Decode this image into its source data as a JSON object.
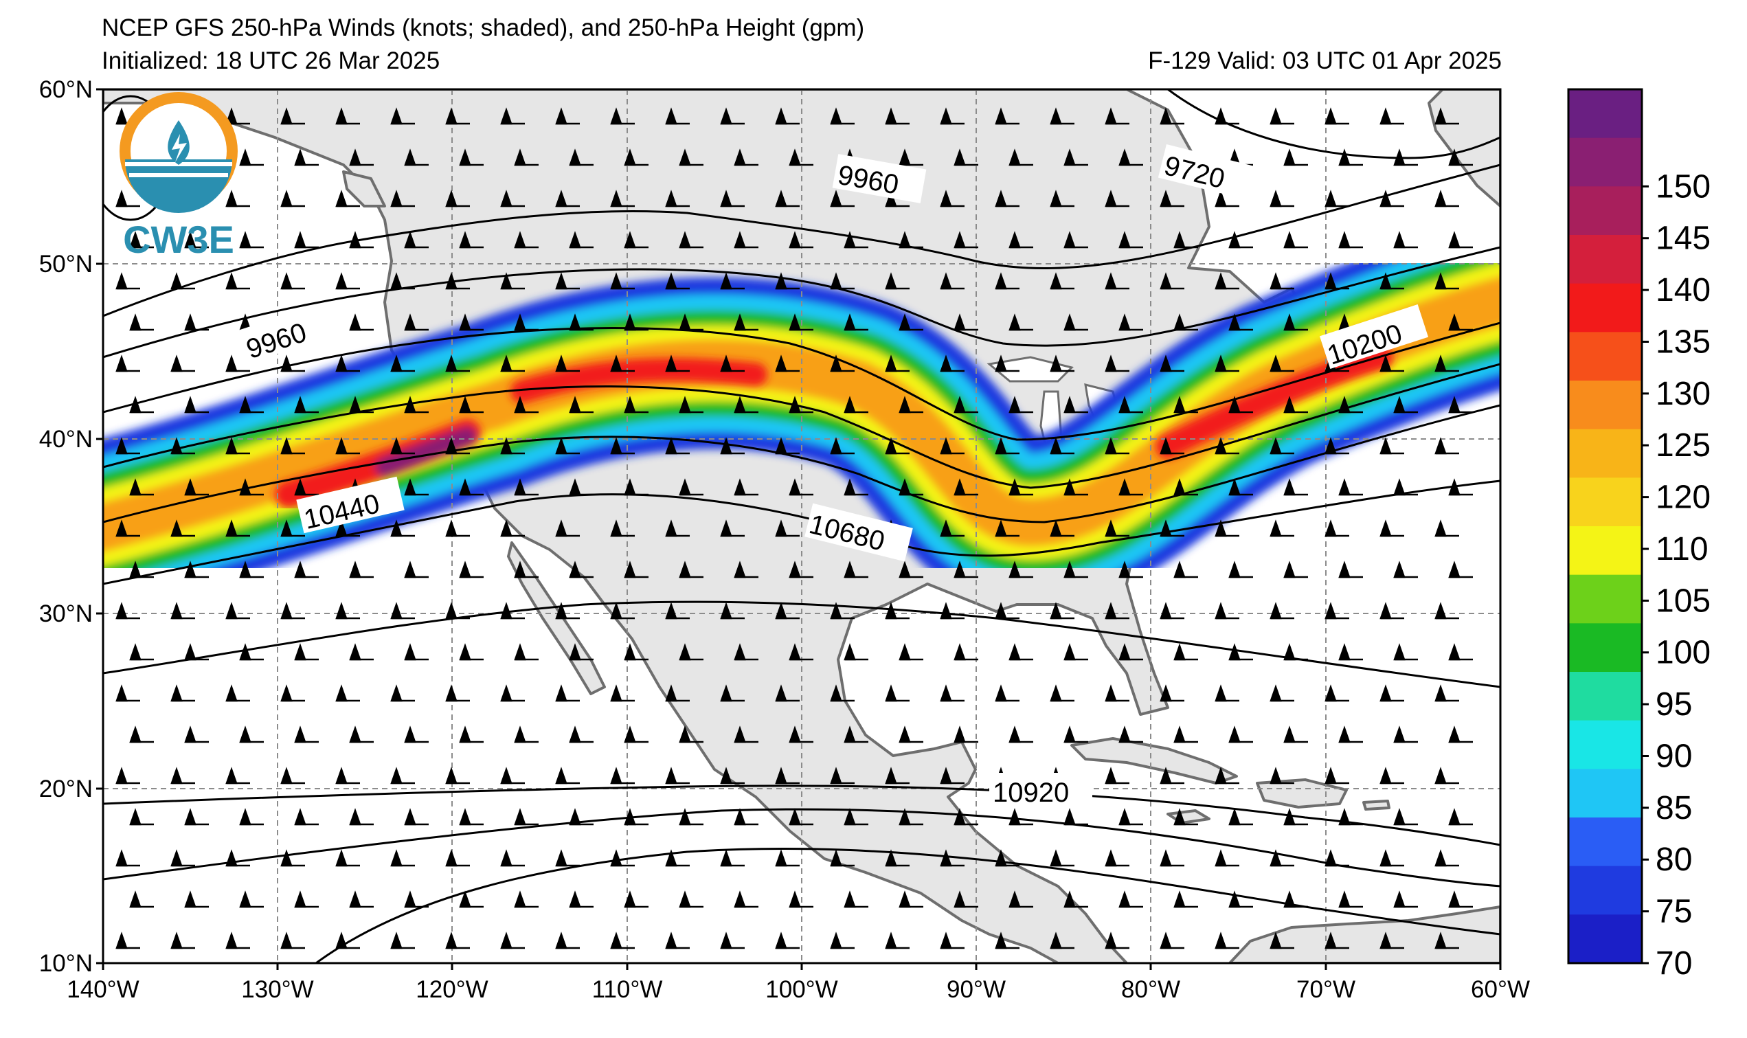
{
  "header": {
    "title": "NCEP GFS 250-hPa Winds (knots; shaded), and 250-hPa Height (gpm)",
    "initialized": "Initialized: 18 UTC 26 Mar 2025",
    "valid": "F-129  Valid: 03 UTC 01 Apr 2025"
  },
  "logo": {
    "text": "CW3E"
  },
  "axes": {
    "lat_labels": [
      "60°N",
      "50°N",
      "40°N",
      "30°N",
      "20°N",
      "10°N"
    ],
    "lon_labels": [
      "140°W",
      "130°W",
      "120°W",
      "110°W",
      "100°W",
      "90°W",
      "80°W",
      "70°W",
      "60°W"
    ]
  },
  "contours": [
    {
      "label": "9960",
      "id": "west"
    },
    {
      "label": "9960",
      "id": "central"
    },
    {
      "label": "9720",
      "id": "northeast"
    },
    {
      "label": "10200",
      "id": "east"
    },
    {
      "label": "10440",
      "id": "pacific"
    },
    {
      "label": "10680",
      "id": "plains"
    },
    {
      "label": "10920",
      "id": "mexico"
    }
  ],
  "colorbar": {
    "ticks": [
      "70",
      "75",
      "80",
      "85",
      "90",
      "95",
      "100",
      "105",
      "110",
      "120",
      "125",
      "130",
      "135",
      "140",
      "145",
      "150"
    ],
    "colors": [
      "#1b1fc7",
      "#1f3be0",
      "#2a5df5",
      "#1fc6f5",
      "#19e6e6",
      "#1fdca0",
      "#1aba24",
      "#6dd11a",
      "#f4f416",
      "#f8d31c",
      "#f8b418",
      "#f88c1c",
      "#f6501a",
      "#f21a1a",
      "#d41f3c",
      "#a81f5c",
      "#8a1f72",
      "#6a1f82"
    ]
  },
  "colors": {
    "land": "#e6e6e6",
    "ocean": "#ffffff",
    "coast": "#6e6e6e",
    "logo_orange": "#f49a20",
    "logo_blue": "#2a8fb0"
  }
}
